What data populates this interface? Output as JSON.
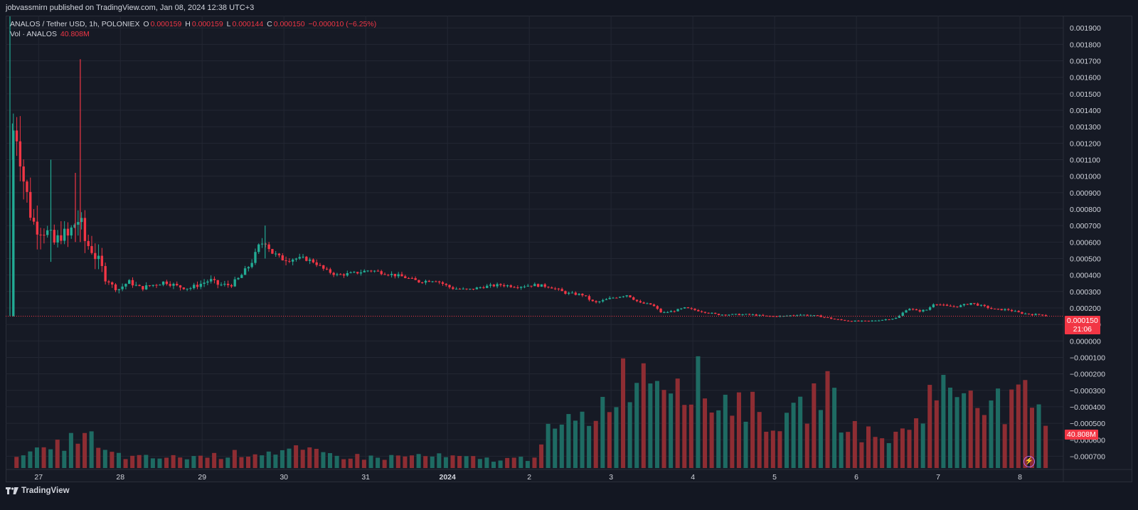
{
  "header": {
    "published": "jobvassmirn published on TradingView.com, Jan 08, 2024 12:38 UTC+3"
  },
  "legend": {
    "symbol": "ANALOS / Tether USD, 1h, POLONIEX",
    "o_label": "O",
    "o_value": "0.000159",
    "h_label": "H",
    "h_value": "0.000159",
    "l_label": "L",
    "l_value": "0.000144",
    "c_label": "C",
    "c_value": "0.000150",
    "change": "−0.000010 (−6.25%)",
    "vol_label": "Vol · ANALOS",
    "vol_value": "40.808M"
  },
  "price_badge": {
    "price": "0.000150",
    "countdown": "21:06"
  },
  "volume_badge": "40.808M",
  "footer": {
    "brand": "TradingView"
  },
  "colors": {
    "up": "#22ab94",
    "down": "#f23645",
    "vol_up": "#1e6b63",
    "vol_down": "#8e2d33",
    "bg": "#161a25",
    "grid": "#232733"
  },
  "chart_data": {
    "type": "candlestick",
    "symbol": "ANALOS / Tether USD",
    "interval": "1h",
    "exchange": "POLONIEX",
    "price_axis_ticks": [
      "0.001900",
      "0.001800",
      "0.001700",
      "0.001600",
      "0.001500",
      "0.001400",
      "0.001300",
      "0.001200",
      "0.001100",
      "0.001000",
      "0.000900",
      "0.000800",
      "0.000700",
      "0.000600",
      "0.000500",
      "0.000400",
      "0.000300",
      "0.000200",
      "0.000100",
      "0.000000",
      "−0.000100",
      "−0.000200",
      "−0.000300",
      "−0.000400",
      "−0.000500",
      "−0.000600",
      "−0.000700"
    ],
    "price_axis_values": [
      0.0019,
      0.0018,
      0.0017,
      0.0016,
      0.0015,
      0.0014,
      0.0013,
      0.0012,
      0.0011,
      0.001,
      0.0009,
      0.0008,
      0.0007,
      0.0006,
      0.0005,
      0.0004,
      0.0003,
      0.0002,
      0.0001,
      0,
      -0.0001,
      -0.0002,
      -0.0003,
      -0.0004,
      -0.0005,
      -0.0006,
      -0.0007
    ],
    "ylim": [
      -0.00075,
      0.00197
    ],
    "x_axis": [
      {
        "label": "27",
        "day": 0.35
      },
      {
        "label": "28",
        "day": 1.35
      },
      {
        "label": "29",
        "day": 2.35
      },
      {
        "label": "30",
        "day": 3.35
      },
      {
        "label": "31",
        "day": 4.35
      },
      {
        "label": "2024",
        "day": 5.35,
        "bold": true
      },
      {
        "label": "2",
        "day": 6.35
      },
      {
        "label": "3",
        "day": 7.35
      },
      {
        "label": "4",
        "day": 8.35
      },
      {
        "label": "5",
        "day": 9.35
      },
      {
        "label": "6",
        "day": 10.35
      },
      {
        "label": "7",
        "day": 11.35
      },
      {
        "label": "8",
        "day": 12.35
      }
    ],
    "x_range_days": [
      0,
      12.88
    ],
    "close_anchors": [
      [
        0.0,
        0.00015
      ],
      [
        0.02,
        0.0012
      ],
      [
        0.05,
        0.00131
      ],
      [
        0.1,
        0.00125
      ],
      [
        0.16,
        0.001
      ],
      [
        0.22,
        0.00085
      ],
      [
        0.28,
        0.00072
      ],
      [
        0.34,
        0.0007
      ],
      [
        0.42,
        0.00068
      ],
      [
        0.5,
        0.00062
      ],
      [
        0.56,
        0.00058
      ],
      [
        0.62,
        0.00066
      ],
      [
        0.7,
        0.00062
      ],
      [
        0.76,
        0.00068
      ],
      [
        0.82,
        0.00074
      ],
      [
        0.86,
        0.00072
      ],
      [
        0.92,
        0.0006
      ],
      [
        1.0,
        0.00056
      ],
      [
        1.08,
        0.00048
      ],
      [
        1.16,
        0.0004
      ],
      [
        1.24,
        0.00034
      ],
      [
        1.32,
        0.00031
      ],
      [
        1.45,
        0.00036
      ],
      [
        1.6,
        0.00032
      ],
      [
        1.75,
        0.00034
      ],
      [
        1.9,
        0.00036
      ],
      [
        2.05,
        0.00033
      ],
      [
        2.2,
        0.00032
      ],
      [
        2.35,
        0.00035
      ],
      [
        2.45,
        0.00037
      ],
      [
        2.55,
        0.00034
      ],
      [
        2.7,
        0.00034
      ],
      [
        2.8,
        0.00038
      ],
      [
        2.9,
        0.00044
      ],
      [
        2.98,
        0.0005
      ],
      [
        3.05,
        0.00058
      ],
      [
        3.12,
        0.00061
      ],
      [
        3.2,
        0.00054
      ],
      [
        3.3,
        0.0005
      ],
      [
        3.45,
        0.0005
      ],
      [
        3.6,
        0.0005
      ],
      [
        3.72,
        0.00048
      ],
      [
        3.85,
        0.00043
      ],
      [
        4.0,
        0.0004
      ],
      [
        4.2,
        0.00041
      ],
      [
        4.4,
        0.00043
      ],
      [
        4.6,
        0.00041
      ],
      [
        4.8,
        0.00039
      ],
      [
        5.0,
        0.00036
      ],
      [
        5.2,
        0.00037
      ],
      [
        5.4,
        0.00032
      ],
      [
        5.6,
        0.00031
      ],
      [
        5.8,
        0.00033
      ],
      [
        6.0,
        0.00034
      ],
      [
        6.2,
        0.00033
      ],
      [
        6.4,
        0.00034
      ],
      [
        6.6,
        0.00033
      ],
      [
        6.8,
        0.00029
      ],
      [
        7.0,
        0.00028
      ],
      [
        7.15,
        0.00023
      ],
      [
        7.35,
        0.00026
      ],
      [
        7.55,
        0.00028
      ],
      [
        7.7,
        0.00023
      ],
      [
        7.85,
        0.00022
      ],
      [
        7.97,
        0.00017
      ],
      [
        8.1,
        0.00018
      ],
      [
        8.25,
        0.0002
      ],
      [
        8.45,
        0.00018
      ],
      [
        8.65,
        0.00016
      ],
      [
        8.85,
        0.00016
      ],
      [
        9.05,
        0.00016
      ],
      [
        9.25,
        0.00015
      ],
      [
        9.45,
        0.00015
      ],
      [
        9.65,
        0.00016
      ],
      [
        9.9,
        0.00015
      ],
      [
        10.1,
        0.00013
      ],
      [
        10.3,
        0.00012
      ],
      [
        10.5,
        0.00012
      ],
      [
        10.7,
        0.00013
      ],
      [
        10.85,
        0.00014
      ],
      [
        10.98,
        0.0002
      ],
      [
        11.1,
        0.00018
      ],
      [
        11.22,
        0.00019
      ],
      [
        11.3,
        0.00023
      ],
      [
        11.45,
        0.00021
      ],
      [
        11.6,
        0.00021
      ],
      [
        11.75,
        0.00023
      ],
      [
        11.9,
        0.00021
      ],
      [
        12.05,
        0.00019
      ],
      [
        12.2,
        0.00019
      ],
      [
        12.35,
        0.00017
      ],
      [
        12.5,
        0.00016
      ],
      [
        12.62,
        0.00016
      ],
      [
        12.68,
        0.00015
      ]
    ],
    "big_wicks": [
      {
        "day": 0.0,
        "high": 0.00197,
        "low": 0.00015
      },
      {
        "day": 0.03,
        "high": 0.00132,
        "low": 0.0011
      },
      {
        "day": 0.5,
        "high": 0.0011,
        "low": 0.00048
      },
      {
        "day": 0.86,
        "high": 0.00171,
        "low": 0.0006
      },
      {
        "day": 0.8,
        "high": 0.00102,
        "low": 0.0006
      },
      {
        "day": 3.12,
        "high": 0.0007,
        "low": 0.0005
      }
    ],
    "last_price": 0.00015,
    "volume": {
      "axis_scale_note": "volume bars drawn as relative heights (0 to 1 of volume pane)",
      "relative_levels": [
        [
          0.0,
          0.07
        ],
        [
          0.2,
          0.2
        ],
        [
          0.4,
          0.15
        ],
        [
          0.7,
          0.25
        ],
        [
          0.95,
          0.35
        ],
        [
          1.1,
          0.16
        ],
        [
          1.5,
          0.1
        ],
        [
          2.0,
          0.1
        ],
        [
          2.5,
          0.12
        ],
        [
          3.0,
          0.15
        ],
        [
          3.5,
          0.17
        ],
        [
          4.0,
          0.12
        ],
        [
          4.5,
          0.1
        ],
        [
          5.0,
          0.12
        ],
        [
          5.5,
          0.1
        ],
        [
          6.0,
          0.08
        ],
        [
          6.4,
          0.1
        ],
        [
          6.5,
          0.3
        ],
        [
          6.8,
          0.4
        ],
        [
          7.2,
          0.55
        ],
        [
          7.4,
          0.8
        ],
        [
          7.6,
          0.92
        ],
        [
          7.8,
          0.97
        ],
        [
          8.1,
          0.92
        ],
        [
          8.4,
          0.85
        ],
        [
          8.6,
          0.62
        ],
        [
          8.8,
          0.68
        ],
        [
          9.0,
          0.62
        ],
        [
          9.2,
          0.5
        ],
        [
          9.5,
          0.42
        ],
        [
          9.8,
          0.65
        ],
        [
          10.0,
          0.85
        ],
        [
          10.1,
          0.55
        ],
        [
          10.3,
          0.4
        ],
        [
          10.6,
          0.28
        ],
        [
          10.9,
          0.32
        ],
        [
          11.1,
          0.5
        ],
        [
          11.3,
          0.78
        ],
        [
          11.5,
          0.72
        ],
        [
          11.7,
          0.8
        ],
        [
          11.9,
          0.75
        ],
        [
          12.2,
          0.55
        ],
        [
          12.4,
          0.68
        ],
        [
          12.6,
          0.55
        ],
        [
          12.7,
          0.22
        ]
      ],
      "last_volume": "40.808M"
    }
  }
}
